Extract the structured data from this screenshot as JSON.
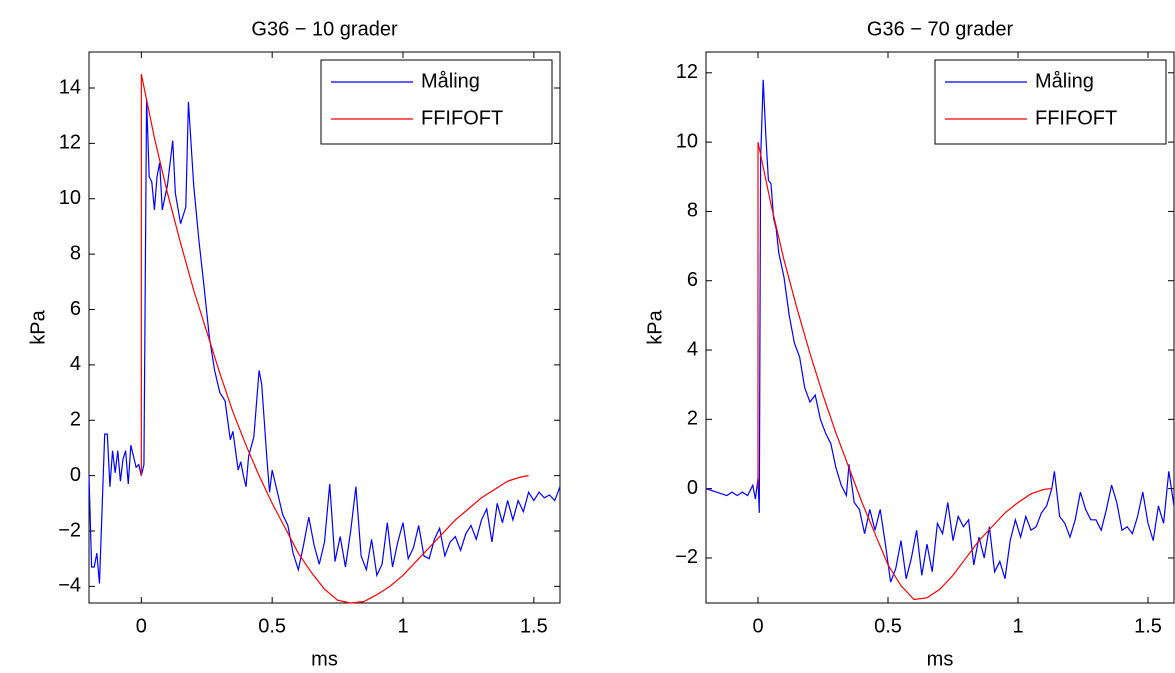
{
  "chart_data": [
    {
      "type": "line",
      "title": "G36 − 10 grader",
      "xlabel": "ms",
      "ylabel": "kPa",
      "xlim": [
        -0.2,
        1.6
      ],
      "ylim": [
        -4.6,
        15.3
      ],
      "xticks": [
        0,
        0.5,
        1,
        1.5
      ],
      "yticks": [
        {
          "value": -4,
          "label": "−4"
        },
        {
          "value": -2,
          "label": "−2"
        },
        0,
        2,
        4,
        6,
        8,
        10,
        12,
        14
      ],
      "legend": "upper right",
      "series": [
        {
          "name": "Måling",
          "color": "#0000ff",
          "x": [
            -0.2,
            -0.19,
            -0.18,
            -0.17,
            -0.16,
            -0.14,
            -0.13,
            -0.12,
            -0.11,
            -0.1,
            -0.09,
            -0.08,
            -0.07,
            -0.06,
            -0.05,
            -0.04,
            -0.02,
            -0.01,
            0,
            0.01,
            0.02,
            0.03,
            0.04,
            0.05,
            0.06,
            0.07,
            0.08,
            0.1,
            0.12,
            0.13,
            0.15,
            0.17,
            0.18,
            0.2,
            0.22,
            0.24,
            0.26,
            0.28,
            0.3,
            0.32,
            0.34,
            0.35,
            0.37,
            0.38,
            0.39,
            0.4,
            0.41,
            0.43,
            0.45,
            0.46,
            0.48,
            0.49,
            0.5,
            0.52,
            0.54,
            0.56,
            0.58,
            0.6,
            0.62,
            0.64,
            0.66,
            0.68,
            0.7,
            0.72,
            0.74,
            0.76,
            0.78,
            0.8,
            0.82,
            0.84,
            0.86,
            0.88,
            0.9,
            0.92,
            0.94,
            0.96,
            0.98,
            1.0,
            1.02,
            1.04,
            1.06,
            1.08,
            1.1,
            1.12,
            1.14,
            1.16,
            1.18,
            1.2,
            1.22,
            1.24,
            1.26,
            1.28,
            1.3,
            1.32,
            1.34,
            1.36,
            1.38,
            1.4,
            1.42,
            1.44,
            1.46,
            1.48,
            1.5,
            1.52,
            1.54,
            1.56,
            1.58,
            1.6
          ],
          "values": [
            0,
            -3.3,
            -3.3,
            -2.8,
            -3.9,
            1.5,
            1.5,
            -0.4,
            0.9,
            0.1,
            0.9,
            -0.2,
            0.6,
            0.9,
            -0.3,
            1.1,
            0.3,
            0.4,
            0,
            0.4,
            13.6,
            10.8,
            10.6,
            9.6,
            10.8,
            11.3,
            9.6,
            10.5,
            12.1,
            10.2,
            9.1,
            9.7,
            13.5,
            10.5,
            8.5,
            6.8,
            5.0,
            3.8,
            3.0,
            2.7,
            1.3,
            1.6,
            0.2,
            0.5,
            0.0,
            -0.4,
            0.7,
            1.4,
            3.8,
            3.3,
            0.6,
            -0.6,
            0.2,
            -0.6,
            -1.4,
            -1.8,
            -2.8,
            -3.4,
            -2.5,
            -1.5,
            -2.5,
            -3.2,
            -2.4,
            -0.3,
            -3.1,
            -2.2,
            -3.3,
            -2.0,
            -0.4,
            -2.9,
            -3.4,
            -2.3,
            -3.6,
            -3.2,
            -1.7,
            -3.3,
            -2.4,
            -1.7,
            -3.0,
            -2.6,
            -1.8,
            -2.9,
            -3.0,
            -2.3,
            -1.9,
            -2.9,
            -2.4,
            -2.2,
            -2.7,
            -2.1,
            -1.8,
            -2.3,
            -1.6,
            -1.2,
            -2.4,
            -1.0,
            -1.7,
            -0.9,
            -1.6,
            -0.9,
            -1.3,
            -0.6,
            -0.9,
            -0.6,
            -0.8,
            -0.7,
            -0.9,
            -0.4
          ]
        },
        {
          "name": "FFIFOFT",
          "color": "#ff0000",
          "x": [
            0,
            0,
            0.05,
            0.1,
            0.15,
            0.2,
            0.25,
            0.3,
            0.35,
            0.4,
            0.45,
            0.5,
            0.55,
            0.6,
            0.65,
            0.7,
            0.75,
            0.8,
            0.85,
            0.9,
            0.95,
            1.0,
            1.05,
            1.1,
            1.15,
            1.2,
            1.25,
            1.3,
            1.35,
            1.4,
            1.45,
            1.48
          ],
          "values": [
            0,
            14.5,
            12.2,
            10.2,
            8.4,
            6.7,
            5.2,
            3.7,
            2.3,
            1.1,
            0.0,
            -1.0,
            -1.9,
            -2.8,
            -3.5,
            -4.1,
            -4.5,
            -4.6,
            -4.55,
            -4.3,
            -4.0,
            -3.6,
            -3.1,
            -2.6,
            -2.1,
            -1.6,
            -1.2,
            -0.8,
            -0.5,
            -0.2,
            -0.05,
            0
          ]
        }
      ]
    },
    {
      "type": "line",
      "title": "G36 − 70 grader",
      "xlabel": "ms",
      "ylabel": "kPa",
      "xlim": [
        -0.2,
        1.6
      ],
      "ylim": [
        -3.3,
        12.6
      ],
      "xticks": [
        0,
        0.5,
        1,
        1.5
      ],
      "yticks": [
        {
          "value": -2,
          "label": "−2"
        },
        0,
        2,
        4,
        6,
        8,
        10,
        12
      ],
      "legend": "upper right",
      "series": [
        {
          "name": "Måling",
          "color": "#0000ff",
          "x": [
            -0.2,
            -0.18,
            -0.16,
            -0.14,
            -0.12,
            -0.1,
            -0.08,
            -0.06,
            -0.04,
            -0.02,
            -0.01,
            0,
            0.005,
            0.01,
            0.02,
            0.03,
            0.04,
            0.05,
            0.06,
            0.07,
            0.08,
            0.1,
            0.12,
            0.14,
            0.16,
            0.18,
            0.2,
            0.22,
            0.24,
            0.26,
            0.28,
            0.3,
            0.32,
            0.34,
            0.35,
            0.37,
            0.39,
            0.41,
            0.43,
            0.45,
            0.47,
            0.49,
            0.51,
            0.53,
            0.55,
            0.57,
            0.59,
            0.61,
            0.63,
            0.65,
            0.67,
            0.69,
            0.71,
            0.73,
            0.75,
            0.77,
            0.79,
            0.81,
            0.83,
            0.85,
            0.87,
            0.89,
            0.91,
            0.93,
            0.95,
            0.97,
            0.99,
            1.01,
            1.03,
            1.05,
            1.07,
            1.09,
            1.11,
            1.13,
            1.14,
            1.16,
            1.18,
            1.2,
            1.22,
            1.24,
            1.26,
            1.28,
            1.3,
            1.32,
            1.34,
            1.36,
            1.38,
            1.4,
            1.42,
            1.44,
            1.46,
            1.48,
            1.5,
            1.52,
            1.54,
            1.56,
            1.58,
            1.6
          ],
          "values": [
            0,
            -0.05,
            -0.1,
            -0.15,
            -0.2,
            -0.1,
            -0.2,
            -0.1,
            -0.2,
            0.1,
            -0.3,
            0.3,
            -0.7,
            9.5,
            11.8,
            10.2,
            8.9,
            8.8,
            7.8,
            7.5,
            6.8,
            6.1,
            5.0,
            4.2,
            3.8,
            2.9,
            2.5,
            2.7,
            2.0,
            1.6,
            1.3,
            0.6,
            0.1,
            -0.2,
            0.7,
            -0.4,
            -0.6,
            -1.3,
            -0.6,
            -1.2,
            -0.6,
            -1.6,
            -2.7,
            -2.3,
            -1.5,
            -2.6,
            -2.0,
            -1.2,
            -2.5,
            -1.6,
            -2.4,
            -1.0,
            -1.3,
            -0.4,
            -1.5,
            -0.8,
            -1.1,
            -0.9,
            -2.2,
            -1.4,
            -2.0,
            -1.1,
            -2.4,
            -2.1,
            -2.6,
            -1.5,
            -0.9,
            -1.4,
            -0.8,
            -1.2,
            -1.1,
            -0.7,
            -0.5,
            0.0,
            0.5,
            -0.8,
            -1.0,
            -1.4,
            -0.9,
            -0.1,
            -0.6,
            -0.9,
            -0.9,
            -1.2,
            -0.6,
            0.1,
            -0.4,
            -1.2,
            -1.1,
            -1.3,
            -0.8,
            -0.1,
            -1.0,
            -1.5,
            -0.5,
            -1.0,
            0.5,
            -0.5
          ]
        },
        {
          "name": "FFIFOFT",
          "color": "#ff0000",
          "x": [
            0,
            0,
            0.05,
            0.1,
            0.15,
            0.2,
            0.25,
            0.3,
            0.35,
            0.4,
            0.45,
            0.5,
            0.55,
            0.6,
            0.65,
            0.7,
            0.75,
            0.8,
            0.85,
            0.9,
            0.95,
            1.0,
            1.05,
            1.1,
            1.13
          ],
          "values": [
            0,
            10,
            8.2,
            6.6,
            5.2,
            3.9,
            2.7,
            1.6,
            0.6,
            -0.4,
            -1.3,
            -2.2,
            -2.8,
            -3.2,
            -3.15,
            -2.9,
            -2.5,
            -2.0,
            -1.5,
            -1.1,
            -0.7,
            -0.4,
            -0.15,
            -0.02,
            0
          ]
        }
      ]
    }
  ]
}
